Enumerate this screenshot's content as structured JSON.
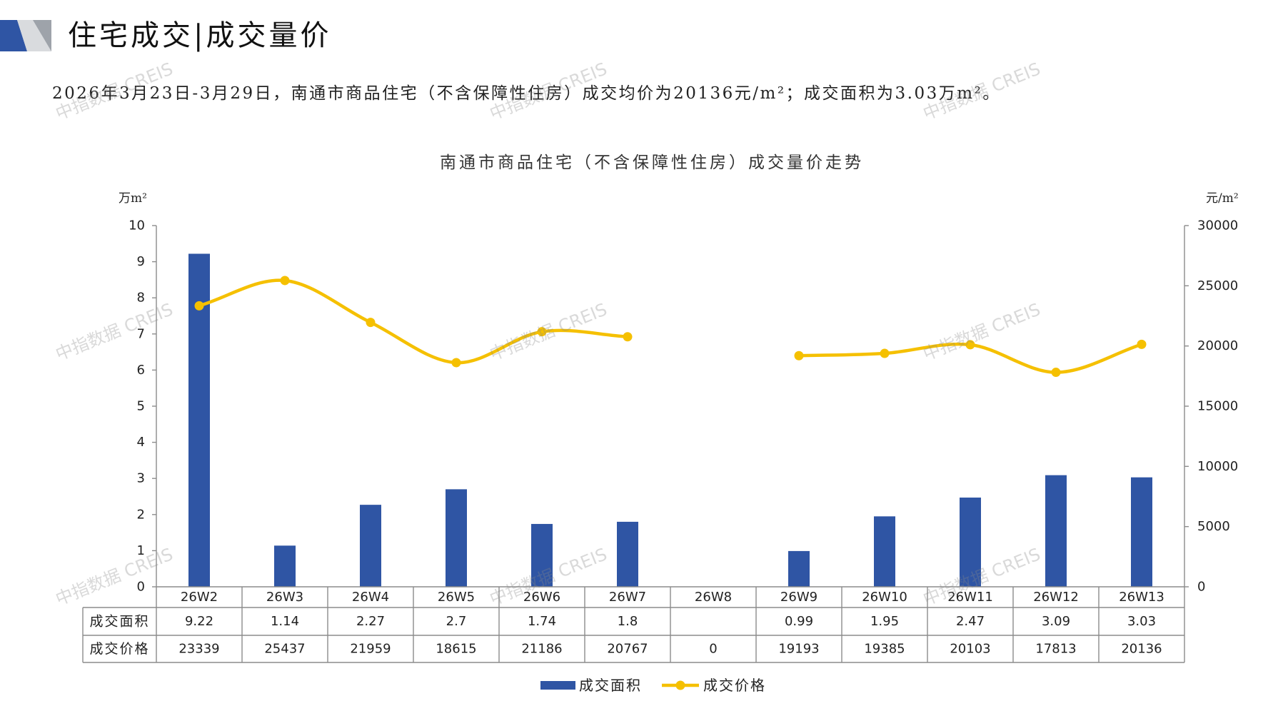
{
  "header": {
    "title": "住宅成交|成交量价",
    "summary": "2026年3月23日-3月29日，南通市商品住宅（不含保障性住房）成交均价为20136元/m²；成交面积为3.03万m²。"
  },
  "watermark": "中指数据 CREIS",
  "icons": {
    "logo": "brand-logo-icon"
  },
  "colors": {
    "brand_blue": "#2F55A4",
    "area_bar": "#2F55A4",
    "price_line": "#F5C000",
    "axis": "#8C8C8C"
  },
  "chart_data": {
    "type": "bar",
    "title": "南通市商品住宅（不含保障性住房）成交量价走势",
    "y_left_unit": "万m²",
    "y_right_unit": "元/m²",
    "ylim_left": [
      0,
      10
    ],
    "yticks_left": [
      0,
      1,
      2,
      3,
      4,
      5,
      6,
      7,
      8,
      9,
      10
    ],
    "ylim_right": [
      0,
      30000
    ],
    "yticks_right": [
      0,
      5000,
      10000,
      15000,
      20000,
      25000,
      30000
    ],
    "categories": [
      "26W2",
      "26W3",
      "26W4",
      "26W5",
      "26W6",
      "26W7",
      "26W8",
      "26W9",
      "26W10",
      "26W11",
      "26W12",
      "26W13"
    ],
    "series": [
      {
        "name": "成交面积",
        "type": "bar",
        "axis": "left",
        "values": [
          9.22,
          1.14,
          2.27,
          2.7,
          1.74,
          1.8,
          null,
          0.99,
          1.95,
          2.47,
          3.09,
          3.03
        ]
      },
      {
        "name": "成交价格",
        "type": "line",
        "axis": "right",
        "smooth": true,
        "values": [
          23339,
          25437,
          21959,
          18615,
          21186,
          20767,
          0,
          19193,
          19385,
          20103,
          17813,
          20136
        ]
      }
    ],
    "legend": "bottom",
    "grid": false,
    "data_table": true
  }
}
